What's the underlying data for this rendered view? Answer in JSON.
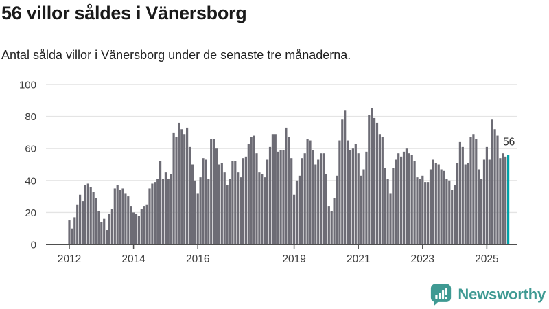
{
  "header": {
    "title": "56 villor såldes i Vänersborg",
    "subtitle": "Antal sålda villor i Vänersborg under de senaste tre månaderna."
  },
  "chart_data": {
    "type": "bar",
    "title": "56 villor såldes i Vänersborg",
    "subtitle": "Antal sålda villor i Vänersborg under de senaste tre månaderna.",
    "xlabel": "",
    "ylabel": "",
    "ylim": [
      0,
      100
    ],
    "yticks": [
      0,
      20,
      40,
      60,
      80,
      100
    ],
    "grid": true,
    "legend_position": "none",
    "period_start": "2012-01",
    "period_end": "2025-09",
    "frequency": "monthly",
    "values": [
      15,
      10,
      17,
      25,
      31,
      27,
      37,
      38,
      36,
      33,
      29,
      21,
      14,
      16,
      9,
      19,
      22,
      35,
      37,
      34,
      35,
      32,
      30,
      24,
      20,
      19,
      18,
      22,
      24,
      25,
      35,
      38,
      39,
      41,
      52,
      41,
      45,
      41,
      44,
      70,
      67,
      76,
      72,
      69,
      73,
      61,
      50,
      40,
      32,
      42,
      54,
      53,
      41,
      66,
      66,
      60,
      50,
      51,
      45,
      37,
      41,
      52,
      52,
      45,
      42,
      54,
      55,
      63,
      67,
      68,
      57,
      45,
      44,
      42,
      53,
      61,
      69,
      69,
      58,
      59,
      59,
      73,
      67,
      54,
      31,
      40,
      43,
      54,
      57,
      66,
      65,
      59,
      50,
      53,
      57,
      57,
      44,
      24,
      21,
      29,
      43,
      65,
      78,
      84,
      65,
      59,
      60,
      63,
      57,
      43,
      47,
      58,
      81,
      85,
      79,
      76,
      69,
      67,
      48,
      41,
      32,
      48,
      53,
      57,
      55,
      58,
      60,
      57,
      56,
      52,
      42,
      41,
      43,
      39,
      39,
      47,
      53,
      51,
      50,
      47,
      46,
      41,
      40,
      34,
      37,
      51,
      64,
      61,
      50,
      51,
      67,
      69,
      66,
      47,
      41,
      53,
      61,
      53,
      78,
      72,
      68,
      54,
      57,
      55,
      56
    ],
    "xticks": [
      {
        "label": "2012",
        "month_index": 0
      },
      {
        "label": "2014",
        "month_index": 24
      },
      {
        "label": "2016",
        "month_index": 48
      },
      {
        "label": "2019",
        "month_index": 84
      },
      {
        "label": "2021",
        "month_index": 108
      },
      {
        "label": "2023",
        "month_index": 132
      },
      {
        "label": "2025",
        "month_index": 156
      }
    ],
    "highlight": {
      "index": 164,
      "label": "56"
    }
  },
  "colors": {
    "bar": "#6d6c75",
    "highlight_bar": "#00a2a8",
    "grid": "#e4e4e4",
    "axis": "#4f4f4f",
    "tick_label": "#3d3d3d",
    "annotation": "#262626",
    "brand": "#3f9a93"
  },
  "footer": {
    "brand": "Newsworthy"
  }
}
